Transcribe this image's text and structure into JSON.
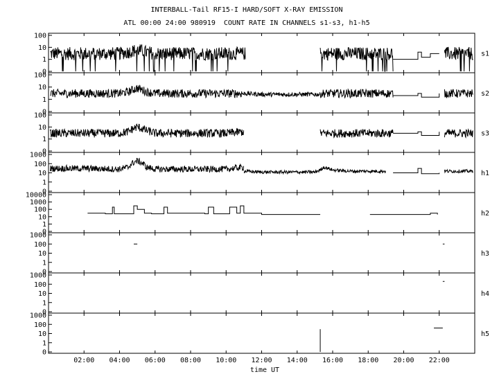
{
  "title": "INTERBALL-Tail RF15-I HARD/SOFT X-RAY EMISSION",
  "subtitle": "ATL 00:00 24:00 980919  COUNT RATE IN CHANNELS s1-s3, h1-h5",
  "chart_data": {
    "type": "line",
    "xlabel": "time UT",
    "xlim": [
      0,
      24
    ],
    "x_ticks": [
      "02:00",
      "04:00",
      "06:00",
      "08:00",
      "10:00",
      "12:00",
      "14:00",
      "16:00",
      "18:00",
      "20:00",
      "22:00"
    ],
    "x_tick_values": [
      2,
      4,
      6,
      8,
      10,
      12,
      14,
      16,
      18,
      20,
      22
    ],
    "y_scale": "log",
    "grid": false,
    "panels": [
      {
        "name": "s1",
        "yticks": [
          "100",
          "10",
          "1",
          "0"
        ],
        "segments": [
          {
            "x": [
              0.1,
              1.0,
              2.0,
              3.0,
              4.0,
              4.5,
              5.0,
              5.5,
              6.0,
              7.0,
              8.0,
              9.0,
              10.0,
              11.1
            ],
            "y": [
              3,
              3,
              3,
              3,
              3,
              4,
              6,
              4,
              3,
              3,
              3,
              3,
              3,
              3
            ],
            "noise": "heavy"
          },
          {
            "x": [
              15.3,
              16.0,
              17.0,
              18.0,
              19.4
            ],
            "y": [
              3,
              3,
              3,
              3,
              3
            ],
            "noise": "heavy"
          },
          {
            "x": [
              19.4,
              20.5,
              20.8,
              21.0,
              21.5,
              22.0
            ],
            "y": [
              1,
              1,
              4,
              1.5,
              3,
              3
            ],
            "noise": "none"
          },
          {
            "x": [
              22.3,
              23.0,
              23.9
            ],
            "y": [
              3,
              3,
              3
            ],
            "noise": "heavy"
          }
        ]
      },
      {
        "name": "s2",
        "yticks": [
          "100",
          "10",
          "1",
          "0"
        ],
        "segments": [
          {
            "x": [
              0.1,
              2.0,
              4.0,
              4.5,
              5.0,
              5.5,
              6.0,
              8.0,
              10.0,
              11.0
            ],
            "y": [
              3,
              3,
              3,
              4,
              8,
              4,
              3,
              3,
              3,
              3
            ],
            "noise": "medium"
          },
          {
            "x": [
              11.0,
              12.0,
              13.0,
              14.0,
              15.3
            ],
            "y": [
              3,
              2.5,
              2.5,
              2.5,
              2.5
            ],
            "noise": "light"
          },
          {
            "x": [
              15.3,
              16.0,
              17.0,
              18.0,
              19.4
            ],
            "y": [
              3,
              3,
              3,
              3,
              3
            ],
            "noise": "medium"
          },
          {
            "x": [
              19.4,
              20.5,
              20.8,
              21.0,
              22.0
            ],
            "y": [
              2,
              2,
              3,
              1.5,
              3
            ],
            "noise": "none"
          },
          {
            "x": [
              22.3,
              23.0,
              23.9
            ],
            "y": [
              3,
              3,
              3
            ],
            "noise": "medium"
          }
        ]
      },
      {
        "name": "s3",
        "yticks": [
          "100",
          "10",
          "1",
          "0"
        ],
        "segments": [
          {
            "x": [
              0.1,
              2.0,
              4.0,
              4.5,
              5.0,
              5.5,
              6.0,
              8.0,
              10.0,
              11.0
            ],
            "y": [
              3,
              3,
              3,
              4,
              10,
              5,
              3,
              3,
              3,
              4
            ],
            "noise": "medium"
          },
          {
            "x": [
              15.3,
              16.0,
              17.0,
              18.0,
              19.4
            ],
            "y": [
              3,
              3,
              3,
              3,
              3
            ],
            "noise": "medium"
          },
          {
            "x": [
              19.4,
              20.5,
              20.8,
              21.0,
              22.0
            ],
            "y": [
              3,
              3,
              4,
              2,
              4
            ],
            "noise": "none"
          },
          {
            "x": [
              22.3,
              23.0,
              23.9
            ],
            "y": [
              3,
              3,
              3
            ],
            "noise": "medium"
          }
        ]
      },
      {
        "name": "h1",
        "yticks": [
          "1000",
          "100",
          "10",
          "1",
          "0"
        ],
        "segments": [
          {
            "x": [
              0.1,
              2.0,
              4.0,
              4.5,
              5.0,
              5.5,
              6.0,
              8.0,
              10.0,
              11.0
            ],
            "y": [
              30,
              30,
              25,
              40,
              200,
              40,
              25,
              25,
              25,
              40
            ],
            "noise": "medium"
          },
          {
            "x": [
              11.0,
              12.0,
              13.0,
              14.0,
              15.0,
              15.3,
              15.5,
              16.0,
              17.0,
              18.0,
              19.0
            ],
            "y": [
              15,
              12,
              12,
              12,
              12,
              20,
              40,
              20,
              15,
              15,
              15
            ],
            "noise": "light"
          },
          {
            "x": [
              19.4,
              20.5,
              20.8,
              21.0,
              22.0
            ],
            "y": [
              10,
              10,
              30,
              8,
              10
            ],
            "noise": "none"
          },
          {
            "x": [
              22.3,
              23.0,
              23.9
            ],
            "y": [
              15,
              15,
              15
            ],
            "noise": "light"
          }
        ]
      },
      {
        "name": "h2",
        "yticks": [
          "10000",
          "1000",
          "100",
          "10",
          "1",
          "0"
        ],
        "segments": [
          {
            "x": [
              2.2,
              2.5,
              3.2,
              3.6,
              3.7,
              4.6,
              4.8,
              5.0,
              5.4,
              5.8,
              6.5,
              6.7,
              8.8,
              9.0,
              9.3,
              10.0,
              10.2,
              10.6,
              10.8,
              11.0,
              12.0,
              14.0,
              15.3
            ],
            "y": [
              30,
              30,
              25,
              200,
              25,
              25,
              300,
              100,
              30,
              25,
              200,
              30,
              25,
              200,
              25,
              25,
              200,
              30,
              300,
              30,
              20,
              20,
              20
            ],
            "noise": "none"
          },
          {
            "x": [
              18.1,
              19.0,
              20.0,
              21.0,
              21.5,
              21.9
            ],
            "y": [
              20,
              20,
              20,
              20,
              30,
              20
            ],
            "noise": "none"
          }
        ]
      },
      {
        "name": "h3",
        "yticks": [
          "1000",
          "100",
          "10",
          "1",
          "0"
        ],
        "segments": [
          {
            "x": [
              4.8,
              5.0
            ],
            "y": [
              100,
              100
            ],
            "noise": "none"
          },
          {
            "x": [
              22.2,
              22.3
            ],
            "y": [
              100,
              100
            ],
            "noise": "none"
          }
        ]
      },
      {
        "name": "h4",
        "yticks": [
          "1000",
          "100",
          "10",
          "1",
          "0"
        ],
        "segments": [
          {
            "x": [
              22.2,
              22.3
            ],
            "y": [
              200,
              200
            ],
            "noise": "none"
          }
        ]
      },
      {
        "name": "h5",
        "yticks": [
          "1000",
          "100",
          "10",
          "1",
          "0"
        ],
        "segments": [
          {
            "x": [
              15.3
            ],
            "y": [
              30
            ],
            "noise": "none"
          },
          {
            "x": [
              21.7,
              22.2
            ],
            "y": [
              40,
              40
            ],
            "noise": "none"
          }
        ]
      }
    ]
  }
}
